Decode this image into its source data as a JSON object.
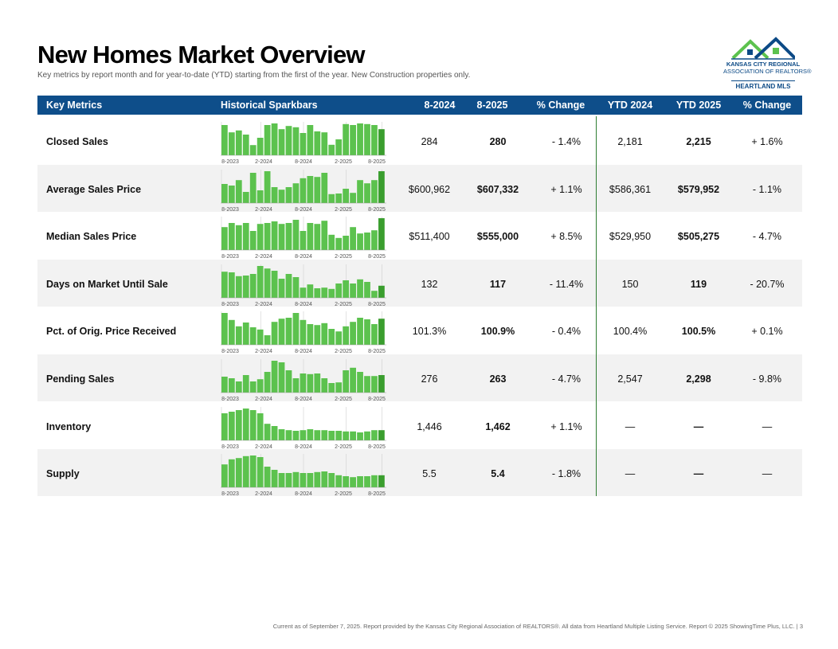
{
  "page": {
    "title": "New Homes Market Overview",
    "subtitle": "Key metrics by report month and for year-to-date (YTD) starting from the first of the year. New Construction properties only.",
    "footer": "Current as of September 7, 2025. Report provided by the Kansas City Regional Association of REALTORS®. All data from Heartland Multiple Listing Service. Report © 2025 ShowingTime Plus, LLC.  |  3"
  },
  "logo": {
    "line1": "KANSAS CITY REGIONAL",
    "line2": "ASSOCIATION OF REALTORS®",
    "line3": "HEARTLAND MLS",
    "icon": "houses-logo-icon"
  },
  "colors": {
    "header_bg": "#0e4e8a",
    "bar": "#5cc24e",
    "bar_last": "#3a9e2e",
    "divider": "#2e7d32"
  },
  "columns": [
    "Key Metrics",
    "Historical Sparkbars",
    "8-2024",
    "8-2025",
    "% Change",
    "YTD 2024",
    "YTD 2025",
    "% Change"
  ],
  "spark_labels": [
    "8-2023",
    "2-2024",
    "8-2024",
    "2-2025",
    "8-2025"
  ],
  "rows": [
    {
      "metric": "Closed Sales",
      "m2024": "284",
      "m2025": "280",
      "chg": "- 1.4%",
      "ytd2024": "2,181",
      "ytd2025": "2,215",
      "ytdchg": "+ 1.6%",
      "bars": [
        0.95,
        0.72,
        0.78,
        0.65,
        0.32,
        0.55,
        0.95,
        1.0,
        0.82,
        0.92,
        0.88,
        0.7,
        0.95,
        0.75,
        0.72,
        0.33,
        0.5,
        0.98,
        0.95,
        1.0,
        0.98,
        0.95,
        0.82
      ]
    },
    {
      "metric": "Average Sales Price",
      "m2024": "$600,962",
      "m2025": "$607,332",
      "chg": "+ 1.1%",
      "ytd2024": "$586,361",
      "ytd2025": "$579,952",
      "ytdchg": "- 1.1%",
      "bars": [
        0.6,
        0.55,
        0.72,
        0.35,
        0.95,
        0.4,
        1.0,
        0.5,
        0.42,
        0.5,
        0.62,
        0.78,
        0.85,
        0.82,
        0.95,
        0.28,
        0.3,
        0.45,
        0.32,
        0.72,
        0.62,
        0.72,
        1.0
      ]
    },
    {
      "metric": "Median Sales Price",
      "m2024": "$511,400",
      "m2025": "$555,000",
      "chg": "+ 8.5%",
      "ytd2024": "$529,950",
      "ytd2025": "$505,275",
      "ytdchg": "- 4.7%",
      "bars": [
        0.72,
        0.85,
        0.78,
        0.85,
        0.6,
        0.82,
        0.85,
        0.9,
        0.82,
        0.85,
        0.95,
        0.6,
        0.85,
        0.82,
        0.92,
        0.48,
        0.38,
        0.45,
        0.72,
        0.52,
        0.55,
        0.62,
        1.0
      ]
    },
    {
      "metric": "Days on Market Until Sale",
      "m2024": "132",
      "m2025": "117",
      "chg": "- 11.4%",
      "ytd2024": "150",
      "ytd2025": "119",
      "ytdchg": "- 20.7%",
      "bars": [
        0.82,
        0.8,
        0.68,
        0.7,
        0.75,
        1.0,
        0.92,
        0.85,
        0.6,
        0.75,
        0.65,
        0.32,
        0.42,
        0.3,
        0.32,
        0.28,
        0.45,
        0.55,
        0.45,
        0.58,
        0.5,
        0.22,
        0.38
      ]
    },
    {
      "metric": "Pct. of Orig. Price Received",
      "m2024": "101.3%",
      "m2025": "100.9%",
      "chg": "- 0.4%",
      "ytd2024": "100.4%",
      "ytd2025": "100.5%",
      "ytdchg": "+ 0.1%",
      "bars": [
        1.0,
        0.78,
        0.58,
        0.7,
        0.55,
        0.48,
        0.3,
        0.72,
        0.82,
        0.85,
        1.0,
        0.78,
        0.65,
        0.62,
        0.68,
        0.5,
        0.42,
        0.58,
        0.72,
        0.85,
        0.8,
        0.65,
        0.82
      ]
    },
    {
      "metric": "Pending Sales",
      "m2024": "276",
      "m2025": "263",
      "chg": "- 4.7%",
      "ytd2024": "2,547",
      "ytd2025": "2,298",
      "ytdchg": "- 9.8%",
      "bars": [
        0.5,
        0.45,
        0.35,
        0.55,
        0.35,
        0.42,
        0.65,
        1.0,
        0.95,
        0.7,
        0.45,
        0.6,
        0.58,
        0.6,
        0.45,
        0.3,
        0.32,
        0.7,
        0.78,
        0.65,
        0.52,
        0.52,
        0.55
      ]
    },
    {
      "metric": "Inventory",
      "m2024": "1,446",
      "m2025": "1,462",
      "chg": "+ 1.1%",
      "ytd2024": "—",
      "ytd2025": "—",
      "ytdchg": "—",
      "bars": [
        0.85,
        0.9,
        0.95,
        1.0,
        0.95,
        0.85,
        0.52,
        0.45,
        0.35,
        0.32,
        0.3,
        0.32,
        0.35,
        0.32,
        0.32,
        0.3,
        0.3,
        0.28,
        0.28,
        0.25,
        0.28,
        0.32,
        0.32
      ]
    },
    {
      "metric": "Supply",
      "m2024": "5.5",
      "m2025": "5.4",
      "chg": "- 1.8%",
      "ytd2024": "—",
      "ytd2025": "—",
      "ytdchg": "—",
      "bars": [
        0.72,
        0.88,
        0.92,
        0.98,
        1.0,
        0.95,
        0.65,
        0.55,
        0.45,
        0.45,
        0.48,
        0.45,
        0.45,
        0.48,
        0.5,
        0.45,
        0.38,
        0.35,
        0.32,
        0.35,
        0.35,
        0.38,
        0.38
      ]
    }
  ]
}
